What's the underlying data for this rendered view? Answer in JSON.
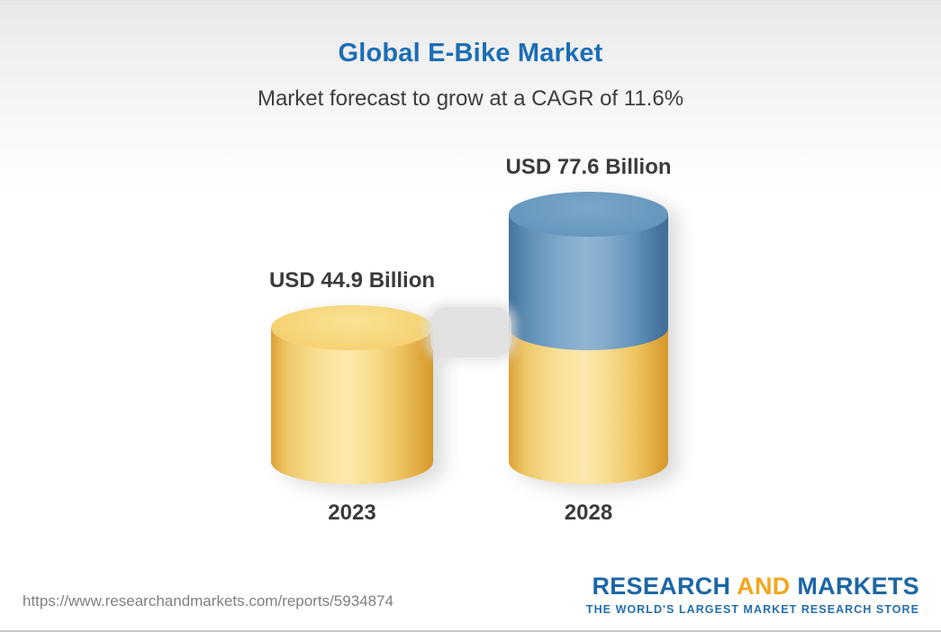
{
  "header": {
    "title": "Global E-Bike Market",
    "subtitle": "Market forecast to grow at a CAGR of 11.6%"
  },
  "chart_data": {
    "type": "bar",
    "variant": "3d-cylinder",
    "title": "Global E-Bike Market",
    "subtitle": "Market forecast to grow at a CAGR of 11.6%",
    "unit": "USD Billion",
    "cagr_percent": 11.6,
    "categories": [
      "2023",
      "2028"
    ],
    "values": [
      44.9,
      77.6
    ],
    "value_labels": [
      "USD 44.9 Billion",
      "USD 77.6 Billion"
    ],
    "bars": [
      {
        "category": "2023",
        "value": 44.9,
        "value_label": "USD 44.9 Billion",
        "segments": [
          {
            "name": "market-2023",
            "value": 44.9,
            "color": "yellow"
          }
        ]
      },
      {
        "category": "2028",
        "value": 77.6,
        "value_label": "USD 77.6 Billion",
        "segments": [
          {
            "name": "base-2023-level",
            "value": 44.9,
            "color": "yellow"
          },
          {
            "name": "growth-2023-to-2028",
            "value": 32.7,
            "color": "blue"
          }
        ]
      }
    ],
    "colors": {
      "yellow_fill": "#F6D57E",
      "blue_fill": "#6697BD",
      "title_blue": "#1B6EB5",
      "label_dark": "#3B3B3B"
    },
    "legend": "none",
    "grid": "off",
    "ylim": [
      0,
      77.6
    ]
  },
  "footer": {
    "url": "https://www.researchandmarkets.com/reports/5934874",
    "logo": {
      "word1": "RESEARCH",
      "word2": "AND",
      "word3": "MARKETS",
      "tagline": "THE WORLD'S LARGEST MARKET RESEARCH STORE",
      "brand_blue": "#1D66A6",
      "brand_orange": "#F2A71F"
    }
  }
}
